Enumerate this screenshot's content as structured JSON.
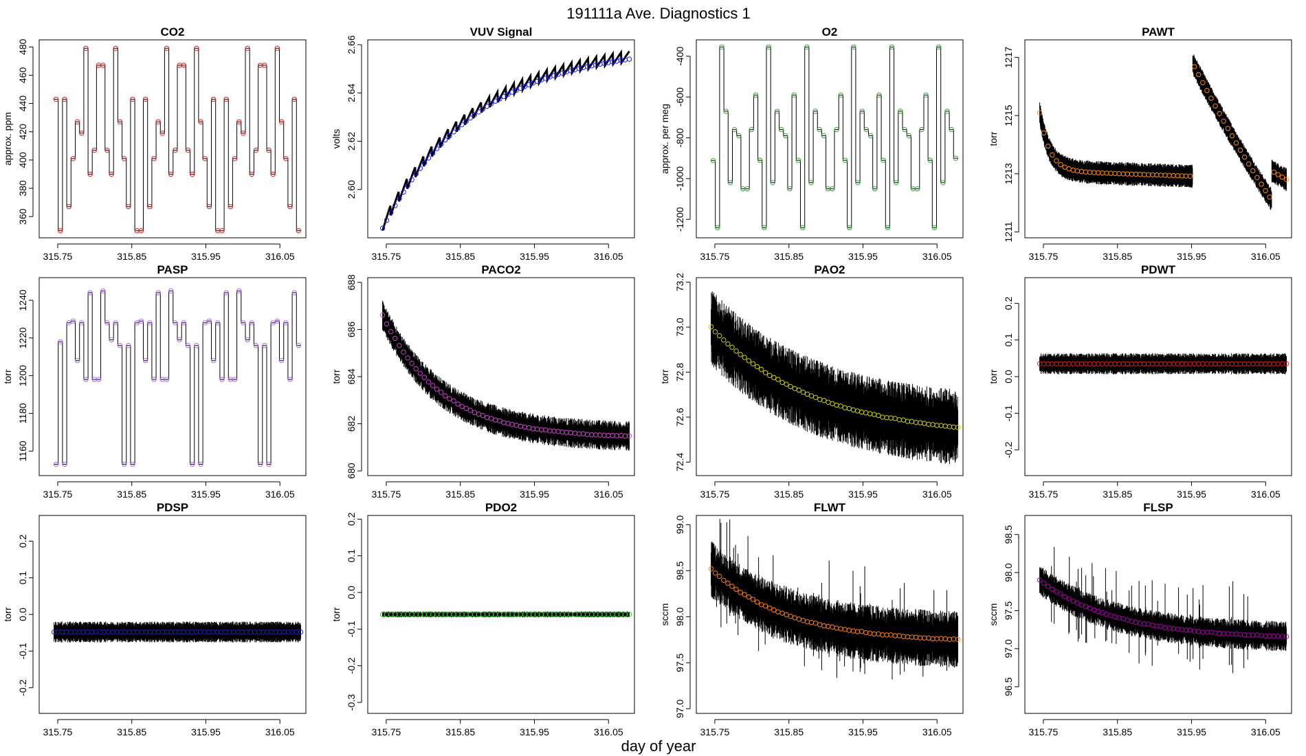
{
  "figure": {
    "title": "191111a   Ave. Diagnostics 1",
    "xlabel": "day of year"
  },
  "chart_data": [
    {
      "id": "co2",
      "type": "line",
      "title": "CO2",
      "ylabel": "approx. ppm",
      "xlim": [
        315.725,
        316.085
      ],
      "ylim": [
        345,
        485
      ],
      "xticks": [
        "315.75",
        "315.85",
        "315.95",
        "316.05"
      ],
      "xtick_values": [
        315.75,
        315.85,
        315.95,
        316.05
      ],
      "yticks": [
        "360",
        "380",
        "400",
        "420",
        "440",
        "460",
        "480"
      ],
      "ytick_values": [
        360,
        380,
        400,
        420,
        440,
        460,
        480
      ],
      "marker_color": "#e41a1c",
      "levels": [
        443,
        350,
        443,
        367,
        401,
        427,
        419,
        479,
        390,
        407,
        467,
        467,
        407,
        390,
        479,
        427,
        401,
        367,
        443,
        350,
        350,
        443,
        367,
        401,
        427,
        419,
        479,
        390,
        407,
        467,
        467,
        407,
        390,
        479,
        427,
        401,
        367,
        443,
        350,
        350,
        443,
        367,
        401,
        427,
        419,
        479,
        390,
        407,
        467,
        467,
        407,
        390,
        479,
        427,
        401,
        367,
        443,
        350
      ]
    },
    {
      "id": "vuv",
      "type": "line",
      "title": "VUV Signal",
      "ylabel": "volts",
      "xlim": [
        315.725,
        316.085
      ],
      "ylim": [
        2.58,
        2.662
      ],
      "xticks": [
        "315.75",
        "315.85",
        "315.95",
        "316.05"
      ],
      "xtick_values": [
        315.75,
        315.85,
        315.95,
        316.05
      ],
      "yticks": [
        "2.60",
        "2.62",
        "2.64",
        "2.66"
      ],
      "ytick_values": [
        2.6,
        2.62,
        2.64,
        2.66
      ],
      "marker_color": "#1a1aff",
      "start": 2.584,
      "end": 2.654
    },
    {
      "id": "o2",
      "type": "line",
      "title": "O2",
      "ylabel": "approx. per meg",
      "xlim": [
        315.725,
        316.085
      ],
      "ylim": [
        -1290,
        -320
      ],
      "xticks": [
        "315.75",
        "315.85",
        "315.95",
        "316.05"
      ],
      "xtick_values": [
        315.75,
        315.85,
        315.95,
        316.05
      ],
      "yticks": [
        "-400",
        "-600",
        "-800",
        "-1000",
        "-1200"
      ],
      "ytick_values": [
        -400,
        -600,
        -800,
        -1000,
        -1200
      ],
      "marker_color": "#33aa33",
      "levels": [
        -912,
        -1240,
        -355,
        -670,
        -1020,
        -760,
        -790,
        -1050,
        -1050,
        -760,
        -590,
        -910,
        -1240,
        -355,
        -1020,
        -670,
        -760,
        -790,
        -1050,
        -590,
        -910,
        -1240,
        -355,
        -1020,
        -670,
        -760,
        -790,
        -1050,
        -1050,
        -760,
        -590,
        -910,
        -1240,
        -355,
        -1020,
        -670,
        -760,
        -790,
        -1050,
        -590,
        -910,
        -1240,
        -355,
        -1020,
        -670,
        -760,
        -790,
        -1050,
        -1050,
        -760,
        -590,
        -910,
        -1240,
        -355,
        -1020,
        -670,
        -760,
        -900
      ]
    },
    {
      "id": "pawt",
      "type": "line",
      "title": "PAWT",
      "ylabel": "torr",
      "xlim": [
        315.725,
        316.085
      ],
      "ylim": [
        1210.8,
        1217.6
      ],
      "xticks": [
        "315.75",
        "315.85",
        "315.95",
        "316.05"
      ],
      "xtick_values": [
        315.75,
        315.85,
        315.95,
        316.05
      ],
      "yticks": [
        "1211",
        "1213",
        "1215",
        "1217"
      ],
      "ytick_values": [
        1211,
        1213,
        1215,
        1217
      ],
      "marker_color": "#ff8c00"
    },
    {
      "id": "pasp",
      "type": "line",
      "title": "PASP",
      "ylabel": "torr",
      "xlim": [
        315.725,
        316.085
      ],
      "ylim": [
        1147,
        1252
      ],
      "xticks": [
        "315.75",
        "315.85",
        "315.95",
        "316.05"
      ],
      "xtick_values": [
        315.75,
        315.85,
        315.95,
        316.05
      ],
      "yticks": [
        "1160",
        "1180",
        "1200",
        "1220",
        "1240"
      ],
      "ytick_values": [
        1160,
        1180,
        1200,
        1220,
        1240
      ],
      "marker_color": "#b266ff",
      "levels": [
        1153,
        1218,
        1153,
        1228,
        1229,
        1208,
        1228,
        1198,
        1244,
        1198,
        1198,
        1245,
        1228,
        1219,
        1228,
        1216,
        1153,
        1216,
        1153,
        1228,
        1229,
        1208,
        1228,
        1198,
        1244,
        1198,
        1198,
        1245,
        1228,
        1219,
        1228,
        1216,
        1153,
        1216,
        1153,
        1228,
        1229,
        1208,
        1228,
        1198,
        1244,
        1198,
        1198,
        1245,
        1228,
        1219,
        1228,
        1216,
        1153,
        1216,
        1153,
        1228,
        1229,
        1208,
        1228,
        1198,
        1244,
        1216
      ]
    },
    {
      "id": "paco2",
      "type": "line",
      "title": "PACO2",
      "ylabel": "torr",
      "xlim": [
        315.725,
        316.085
      ],
      "ylim": [
        679.8,
        688.2
      ],
      "xticks": [
        "315.75",
        "315.85",
        "315.95",
        "316.05"
      ],
      "xtick_values": [
        315.75,
        315.85,
        315.95,
        316.05
      ],
      "yticks": [
        "680",
        "682",
        "684",
        "686",
        "688"
      ],
      "ytick_values": [
        680,
        682,
        684,
        686,
        688
      ],
      "marker_color": "#cc44cc",
      "start": 686.6,
      "end": 681.4
    },
    {
      "id": "pao2",
      "type": "line",
      "title": "PAO2",
      "ylabel": "torr",
      "xlim": [
        315.725,
        316.085
      ],
      "ylim": [
        72.34,
        73.22
      ],
      "xticks": [
        "315.75",
        "315.85",
        "315.95",
        "316.05"
      ],
      "xtick_values": [
        315.75,
        315.85,
        315.95,
        316.05
      ],
      "yticks": [
        "72.4",
        "72.6",
        "72.8",
        "73.0",
        "73.2"
      ],
      "ytick_values": [
        72.4,
        72.6,
        72.8,
        73.0,
        73.2
      ],
      "marker_color": "#cccc00",
      "start": 73.0,
      "end": 72.51
    },
    {
      "id": "pdwt",
      "type": "line",
      "title": "PDWT",
      "ylabel": "torr",
      "xlim": [
        315.725,
        316.085
      ],
      "ylim": [
        -0.27,
        0.27
      ],
      "xticks": [
        "315.75",
        "315.85",
        "315.95",
        "316.05"
      ],
      "xtick_values": [
        315.75,
        315.85,
        315.95,
        316.05
      ],
      "yticks": [
        "-0.2",
        "-0.1",
        "0.0",
        "0.1",
        "0.2"
      ],
      "ytick_values": [
        -0.2,
        -0.1,
        0.0,
        0.1,
        0.2
      ],
      "marker_color": "#cc2222",
      "mean": 0.035
    },
    {
      "id": "pdsp",
      "type": "line",
      "title": "PDSP",
      "ylabel": "torr",
      "xlim": [
        315.725,
        316.085
      ],
      "ylim": [
        -0.27,
        0.27
      ],
      "xticks": [
        "315.75",
        "315.85",
        "315.95",
        "316.05"
      ],
      "xtick_values": [
        315.75,
        315.85,
        315.95,
        316.05
      ],
      "yticks": [
        "-0.2",
        "-0.1",
        "0.0",
        "0.1",
        "0.2"
      ],
      "ytick_values": [
        -0.2,
        -0.1,
        0.0,
        0.1,
        0.2
      ],
      "marker_color": "#2222aa",
      "mean": -0.048
    },
    {
      "id": "pdo2",
      "type": "line",
      "title": "PDO2",
      "ylabel": "torr",
      "xlim": [
        315.725,
        316.085
      ],
      "ylim": [
        -0.33,
        0.21
      ],
      "xticks": [
        "315.75",
        "315.85",
        "315.95",
        "316.05"
      ],
      "xtick_values": [
        315.75,
        315.85,
        315.95,
        316.05
      ],
      "yticks": [
        "-0.3",
        "-0.2",
        "-0.1",
        "0.0",
        "0.1",
        "0.2"
      ],
      "ytick_values": [
        -0.3,
        -0.2,
        -0.1,
        0.0,
        0.1,
        0.2
      ],
      "marker_color": "#22cc22",
      "mean": -0.06
    },
    {
      "id": "flwt",
      "type": "line",
      "title": "FLWT",
      "ylabel": "sccm",
      "xlim": [
        315.725,
        316.085
      ],
      "ylim": [
        96.95,
        99.1
      ],
      "xticks": [
        "315.75",
        "315.85",
        "315.95",
        "316.05"
      ],
      "xtick_values": [
        315.75,
        315.85,
        315.95,
        316.05
      ],
      "yticks": [
        "97.0",
        "97.5",
        "98.0",
        "98.5",
        "99.0"
      ],
      "ytick_values": [
        97.0,
        97.5,
        98.0,
        98.5,
        99.0
      ],
      "marker_color": "#ff7f0e",
      "start": 98.52,
      "end": 97.72
    },
    {
      "id": "flsp",
      "type": "line",
      "title": "FLSP",
      "ylabel": "sccm",
      "xlim": [
        315.725,
        316.085
      ],
      "ylim": [
        96.15,
        98.75
      ],
      "xticks": [
        "315.75",
        "315.85",
        "315.95",
        "316.05"
      ],
      "xtick_values": [
        315.75,
        315.85,
        315.95,
        316.05
      ],
      "yticks": [
        "96.5",
        "97.0",
        "97.5",
        "98.0",
        "98.5"
      ],
      "ytick_values": [
        96.5,
        97.0,
        97.5,
        98.0,
        98.5
      ],
      "marker_color": "#aa00aa",
      "start": 97.9,
      "end": 97.13
    }
  ]
}
